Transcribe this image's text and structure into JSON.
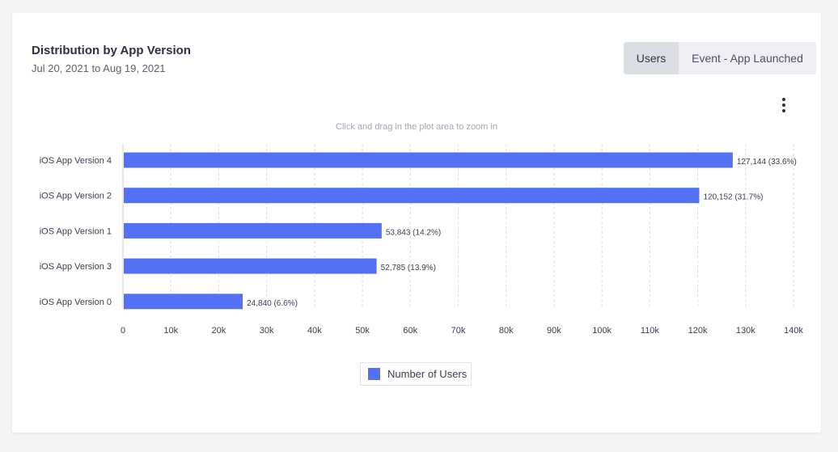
{
  "card": {
    "title": "Distribution by App Version",
    "subtitle": "Jul 20, 2021 to Aug 19, 2021",
    "toggle": {
      "active": "Users",
      "other": "Event - App Launched"
    },
    "hint": "Click and drag in the plot area to zoom in",
    "menu_icon": "vertical-ellipsis-icon"
  },
  "chart_data": {
    "type": "bar",
    "orientation": "horizontal",
    "title": "Distribution by App Version",
    "categories": [
      "iOS App Version 4",
      "iOS App Version 2",
      "iOS App Version 1",
      "iOS App Version 3",
      "iOS App Version 0"
    ],
    "values": [
      127144,
      120152,
      53843,
      52785,
      24840
    ],
    "data_labels": [
      "127,144 (33.6%)",
      "120,152 (31.7%)",
      "53,843 (14.2%)",
      "52,785 (13.9%)",
      "24,840 (6.6%)"
    ],
    "xlim": [
      0,
      140000
    ],
    "x_ticks": [
      0,
      10000,
      20000,
      30000,
      40000,
      50000,
      60000,
      70000,
      80000,
      90000,
      100000,
      110000,
      120000,
      130000,
      140000
    ],
    "x_tick_labels": [
      "0",
      "10k",
      "20k",
      "30k",
      "40k",
      "50k",
      "60k",
      "70k",
      "80k",
      "90k",
      "100k",
      "110k",
      "120k",
      "130k",
      "140k"
    ],
    "grid": true,
    "legend": {
      "position": "bottom-center",
      "entries": [
        "Number of Users"
      ]
    },
    "series_color": "#5470f5"
  }
}
